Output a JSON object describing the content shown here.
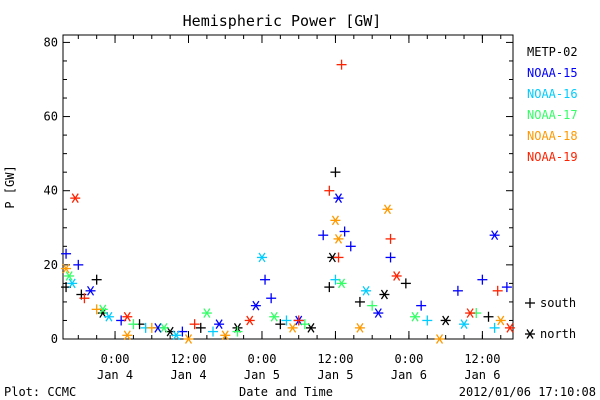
{
  "chart_data": {
    "type": "scatter",
    "title": "Hemispheric Power [GW]",
    "xlabel": "Date and Time",
    "ylabel": "P [GW]",
    "ylim": [
      0,
      82
    ],
    "xlim": [
      "2012-01-03T15:30",
      "2012-01-06T17:00"
    ],
    "yticks": [
      "0",
      "20",
      "40",
      "60",
      "80"
    ],
    "xticks": [
      {
        "time": "2012-01-04T00:00",
        "label1": "0:00",
        "label2": "Jan 4"
      },
      {
        "time": "2012-01-04T12:00",
        "label1": "12:00",
        "label2": "Jan 4"
      },
      {
        "time": "2012-01-05T00:00",
        "label1": "0:00",
        "label2": "Jan 5"
      },
      {
        "time": "2012-01-05T12:00",
        "label1": "12:00",
        "label2": "Jan 5"
      },
      {
        "time": "2012-01-06T00:00",
        "label1": "0:00",
        "label2": "Jan 6"
      },
      {
        "time": "2012-01-06T12:00",
        "label1": "12:00",
        "label2": "Jan 6"
      }
    ],
    "marker_legend": [
      {
        "symbol": "+",
        "label": "south"
      },
      {
        "symbol": "*",
        "label": "north"
      }
    ],
    "legend_position": "right",
    "series": [
      {
        "name": "METP-02",
        "color": "#000000",
        "points": [
          {
            "x": "2012-01-03T16:00",
            "y": 14,
            "m": "s"
          },
          {
            "x": "2012-01-03T18:30",
            "y": 12,
            "m": "s"
          },
          {
            "x": "2012-01-03T21:00",
            "y": 16,
            "m": "s"
          },
          {
            "x": "2012-01-03T22:00",
            "y": 7,
            "m": "n"
          },
          {
            "x": "2012-01-04T04:00",
            "y": 4,
            "m": "s"
          },
          {
            "x": "2012-01-04T09:00",
            "y": 2,
            "m": "n"
          },
          {
            "x": "2012-01-04T14:00",
            "y": 3,
            "m": "s"
          },
          {
            "x": "2012-01-04T20:00",
            "y": 3,
            "m": "n"
          },
          {
            "x": "2012-01-05T03:00",
            "y": 4,
            "m": "s"
          },
          {
            "x": "2012-01-05T08:00",
            "y": 3,
            "m": "n"
          },
          {
            "x": "2012-01-05T11:00",
            "y": 14,
            "m": "s"
          },
          {
            "x": "2012-01-05T12:00",
            "y": 45,
            "m": "s"
          },
          {
            "x": "2012-01-05T11:30",
            "y": 22,
            "m": "n"
          },
          {
            "x": "2012-01-05T16:00",
            "y": 10,
            "m": "s"
          },
          {
            "x": "2012-01-05T20:00",
            "y": 12,
            "m": "n"
          },
          {
            "x": "2012-01-05T23:30",
            "y": 15,
            "m": "s"
          },
          {
            "x": "2012-01-06T06:00",
            "y": 5,
            "m": "n"
          },
          {
            "x": "2012-01-06T13:00",
            "y": 6,
            "m": "s"
          }
        ]
      },
      {
        "name": "NOAA-15",
        "color": "#0000ff",
        "points": [
          {
            "x": "2012-01-03T16:00",
            "y": 23,
            "m": "s"
          },
          {
            "x": "2012-01-03T18:00",
            "y": 20,
            "m": "s"
          },
          {
            "x": "2012-01-03T20:00",
            "y": 13,
            "m": "n"
          },
          {
            "x": "2012-01-04T01:00",
            "y": 5,
            "m": "s"
          },
          {
            "x": "2012-01-04T07:00",
            "y": 3,
            "m": "n"
          },
          {
            "x": "2012-01-04T11:00",
            "y": 2,
            "m": "s"
          },
          {
            "x": "2012-01-04T17:00",
            "y": 4,
            "m": "n"
          },
          {
            "x": "2012-01-04T23:00",
            "y": 9,
            "m": "n"
          },
          {
            "x": "2012-01-05T00:30",
            "y": 16,
            "m": "s"
          },
          {
            "x": "2012-01-05T01:30",
            "y": 11,
            "m": "s"
          },
          {
            "x": "2012-01-05T06:00",
            "y": 5,
            "m": "n"
          },
          {
            "x": "2012-01-05T10:00",
            "y": 28,
            "m": "s"
          },
          {
            "x": "2012-01-05T12:30",
            "y": 38,
            "m": "n"
          },
          {
            "x": "2012-01-05T13:30",
            "y": 29,
            "m": "s"
          },
          {
            "x": "2012-01-05T14:30",
            "y": 25,
            "m": "s"
          },
          {
            "x": "2012-01-05T19:00",
            "y": 7,
            "m": "n"
          },
          {
            "x": "2012-01-05T21:00",
            "y": 22,
            "m": "s"
          },
          {
            "x": "2012-01-06T02:00",
            "y": 9,
            "m": "s"
          },
          {
            "x": "2012-01-06T08:00",
            "y": 13,
            "m": "s"
          },
          {
            "x": "2012-01-06T12:00",
            "y": 16,
            "m": "s"
          },
          {
            "x": "2012-01-06T14:00",
            "y": 28,
            "m": "n"
          },
          {
            "x": "2012-01-06T16:00",
            "y": 14,
            "m": "s"
          }
        ]
      },
      {
        "name": "NOAA-16",
        "color": "#00ccff",
        "points": [
          {
            "x": "2012-01-03T17:00",
            "y": 15,
            "m": "n"
          },
          {
            "x": "2012-01-03T23:00",
            "y": 6,
            "m": "n"
          },
          {
            "x": "2012-01-04T05:00",
            "y": 3,
            "m": "s"
          },
          {
            "x": "2012-01-04T10:00",
            "y": 1,
            "m": "n"
          },
          {
            "x": "2012-01-04T16:00",
            "y": 2,
            "m": "s"
          },
          {
            "x": "2012-01-05T00:00",
            "y": 22,
            "m": "n"
          },
          {
            "x": "2012-01-05T04:00",
            "y": 5,
            "m": "s"
          },
          {
            "x": "2012-01-05T12:00",
            "y": 16,
            "m": "s"
          },
          {
            "x": "2012-01-05T17:00",
            "y": 13,
            "m": "n"
          },
          {
            "x": "2012-01-06T03:00",
            "y": 5,
            "m": "s"
          },
          {
            "x": "2012-01-06T09:00",
            "y": 4,
            "m": "n"
          },
          {
            "x": "2012-01-06T14:00",
            "y": 3,
            "m": "s"
          }
        ]
      },
      {
        "name": "NOAA-17",
        "color": "#33ff66",
        "points": [
          {
            "x": "2012-01-03T16:30",
            "y": 17,
            "m": "n"
          },
          {
            "x": "2012-01-03T22:00",
            "y": 8,
            "m": "n"
          },
          {
            "x": "2012-01-04T03:00",
            "y": 4,
            "m": "s"
          },
          {
            "x": "2012-01-04T08:00",
            "y": 3,
            "m": "n"
          },
          {
            "x": "2012-01-04T15:00",
            "y": 7,
            "m": "n"
          },
          {
            "x": "2012-01-04T20:00",
            "y": 2,
            "m": "s"
          },
          {
            "x": "2012-01-05T02:00",
            "y": 6,
            "m": "n"
          },
          {
            "x": "2012-01-05T07:00",
            "y": 4,
            "m": "s"
          },
          {
            "x": "2012-01-05T13:00",
            "y": 15,
            "m": "n"
          },
          {
            "x": "2012-01-05T18:00",
            "y": 9,
            "m": "s"
          },
          {
            "x": "2012-01-06T01:00",
            "y": 6,
            "m": "n"
          },
          {
            "x": "2012-01-06T11:00",
            "y": 7,
            "m": "s"
          }
        ]
      },
      {
        "name": "NOAA-18",
        "color": "#ff9900",
        "points": [
          {
            "x": "2012-01-03T16:00",
            "y": 19,
            "m": "n"
          },
          {
            "x": "2012-01-03T21:00",
            "y": 8,
            "m": "s"
          },
          {
            "x": "2012-01-04T02:00",
            "y": 1,
            "m": "n"
          },
          {
            "x": "2012-01-04T06:00",
            "y": 3,
            "m": "s"
          },
          {
            "x": "2012-01-04T12:00",
            "y": 0,
            "m": "n"
          },
          {
            "x": "2012-01-04T18:00",
            "y": 1,
            "m": "n"
          },
          {
            "x": "2012-01-05T05:00",
            "y": 3,
            "m": "n"
          },
          {
            "x": "2012-01-05T12:00",
            "y": 32,
            "m": "n"
          },
          {
            "x": "2012-01-05T12:30",
            "y": 27,
            "m": "n"
          },
          {
            "x": "2012-01-05T16:00",
            "y": 3,
            "m": "n"
          },
          {
            "x": "2012-01-05T20:30",
            "y": 35,
            "m": "n"
          },
          {
            "x": "2012-01-06T05:00",
            "y": 0,
            "m": "n"
          },
          {
            "x": "2012-01-06T15:00",
            "y": 5,
            "m": "n"
          }
        ]
      },
      {
        "name": "NOAA-19",
        "color": "#ff2200",
        "points": [
          {
            "x": "2012-01-03T17:30",
            "y": 38,
            "m": "n"
          },
          {
            "x": "2012-01-03T19:00",
            "y": 11,
            "m": "s"
          },
          {
            "x": "2012-01-04T02:00",
            "y": 6,
            "m": "n"
          },
          {
            "x": "2012-01-04T13:00",
            "y": 4,
            "m": "s"
          },
          {
            "x": "2012-01-04T22:00",
            "y": 5,
            "m": "n"
          },
          {
            "x": "2012-01-05T06:00",
            "y": 5,
            "m": "s"
          },
          {
            "x": "2012-01-05T11:00",
            "y": 40,
            "m": "s"
          },
          {
            "x": "2012-01-05T12:30",
            "y": 22,
            "m": "s"
          },
          {
            "x": "2012-01-05T13:00",
            "y": 74,
            "m": "s"
          },
          {
            "x": "2012-01-05T21:00",
            "y": 27,
            "m": "s"
          },
          {
            "x": "2012-01-05T22:00",
            "y": 17,
            "m": "n"
          },
          {
            "x": "2012-01-06T10:00",
            "y": 7,
            "m": "n"
          },
          {
            "x": "2012-01-06T14:30",
            "y": 13,
            "m": "s"
          },
          {
            "x": "2012-01-06T16:30",
            "y": 3,
            "m": "n"
          }
        ]
      }
    ]
  },
  "footer": {
    "plot_credit": "Plot: CCMC",
    "timestamp": "2012/01/06 17:10:08"
  }
}
